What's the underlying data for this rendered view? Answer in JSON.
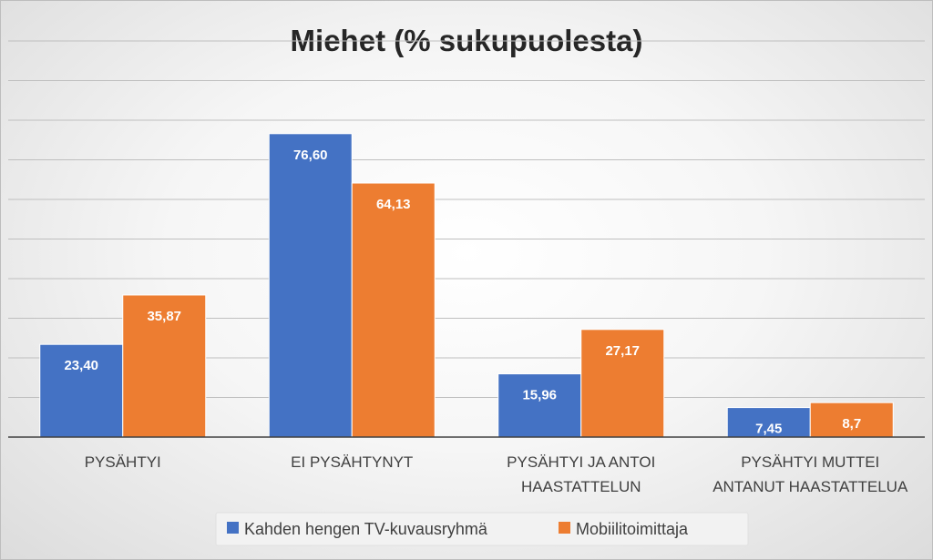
{
  "chart_data": {
    "type": "bar",
    "title": "Miehet (% sukupuolesta)",
    "categories": [
      [
        "PYSÄHTYI"
      ],
      [
        "EI PYSÄHTYNYT"
      ],
      [
        "PYSÄHTYI JA ANTOI",
        "HAASTATTELUN"
      ],
      [
        "PYSÄHTYI MUTTEI",
        "ANTANUT HAASTATTELUA"
      ]
    ],
    "series": [
      {
        "name": "Kahden hengen TV-kuvausryhmä",
        "color": "#4472c4",
        "values": [
          23.4,
          76.6,
          15.96,
          7.45
        ],
        "labels": [
          "23,40",
          "76,60",
          "15,96",
          "7,45"
        ]
      },
      {
        "name": "Mobiilitoimittaja",
        "color": "#ed7d31",
        "values": [
          35.87,
          64.13,
          27.17,
          8.7
        ],
        "labels": [
          "35,87",
          "64,13",
          "27,17",
          "8,7"
        ]
      }
    ],
    "ylim": [
      0,
      100
    ],
    "y_step": 10,
    "grid": true,
    "legend_position": "bottom",
    "xlabel": "",
    "ylabel": ""
  }
}
